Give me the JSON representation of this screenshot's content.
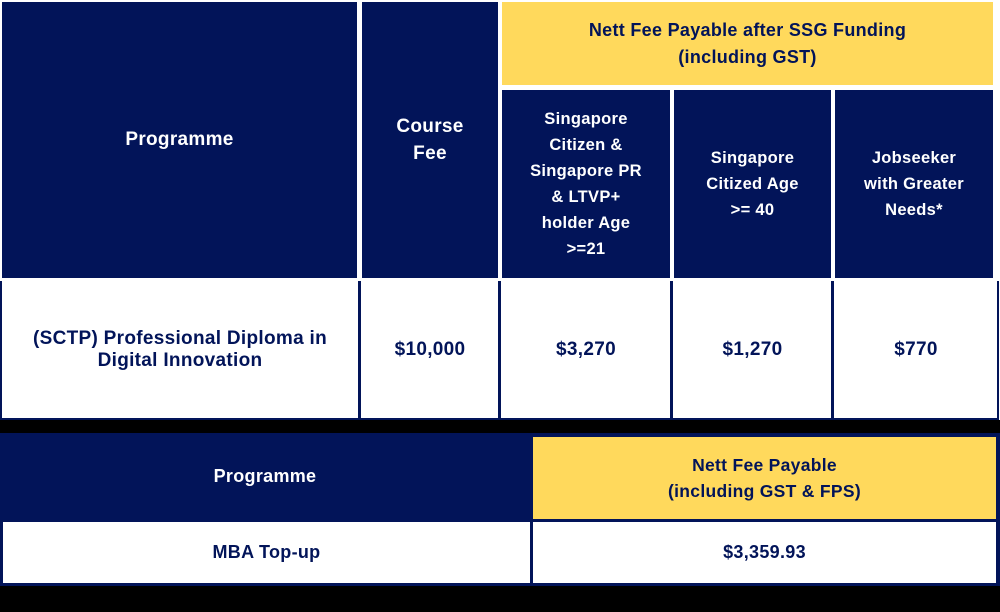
{
  "colors": {
    "navy": "#021459",
    "yellow": "#ffd95c",
    "separator_black": "#000000",
    "cell_white": "#ffffff"
  },
  "top_table": {
    "col_headers": {
      "programme": "Programme",
      "course_fee": "Course\nFee",
      "group_header": "Nett Fee Payable after SSG Funding\n(including GST)",
      "sub_headers": [
        "Singapore\nCitizen &\nSingapore PR\n& LTVP+\nholder Age\n>=21",
        "Singapore\nCitized Age\n>= 40",
        "Jobseeker\nwith Greater\nNeeds*"
      ]
    },
    "rows": [
      {
        "programme": "(SCTP) Professional Diploma in\nDigital Innovation",
        "course_fee": "$10,000",
        "fees": [
          "$3,270",
          "$1,270",
          "$770"
        ]
      }
    ]
  },
  "bottom_table": {
    "headers": {
      "programme": "Programme",
      "nett_fee": "Nett Fee Payable\n(including GST & FPS)"
    },
    "rows": [
      {
        "programme": "MBA Top-up",
        "nett_fee": "$3,359.93"
      }
    ]
  }
}
